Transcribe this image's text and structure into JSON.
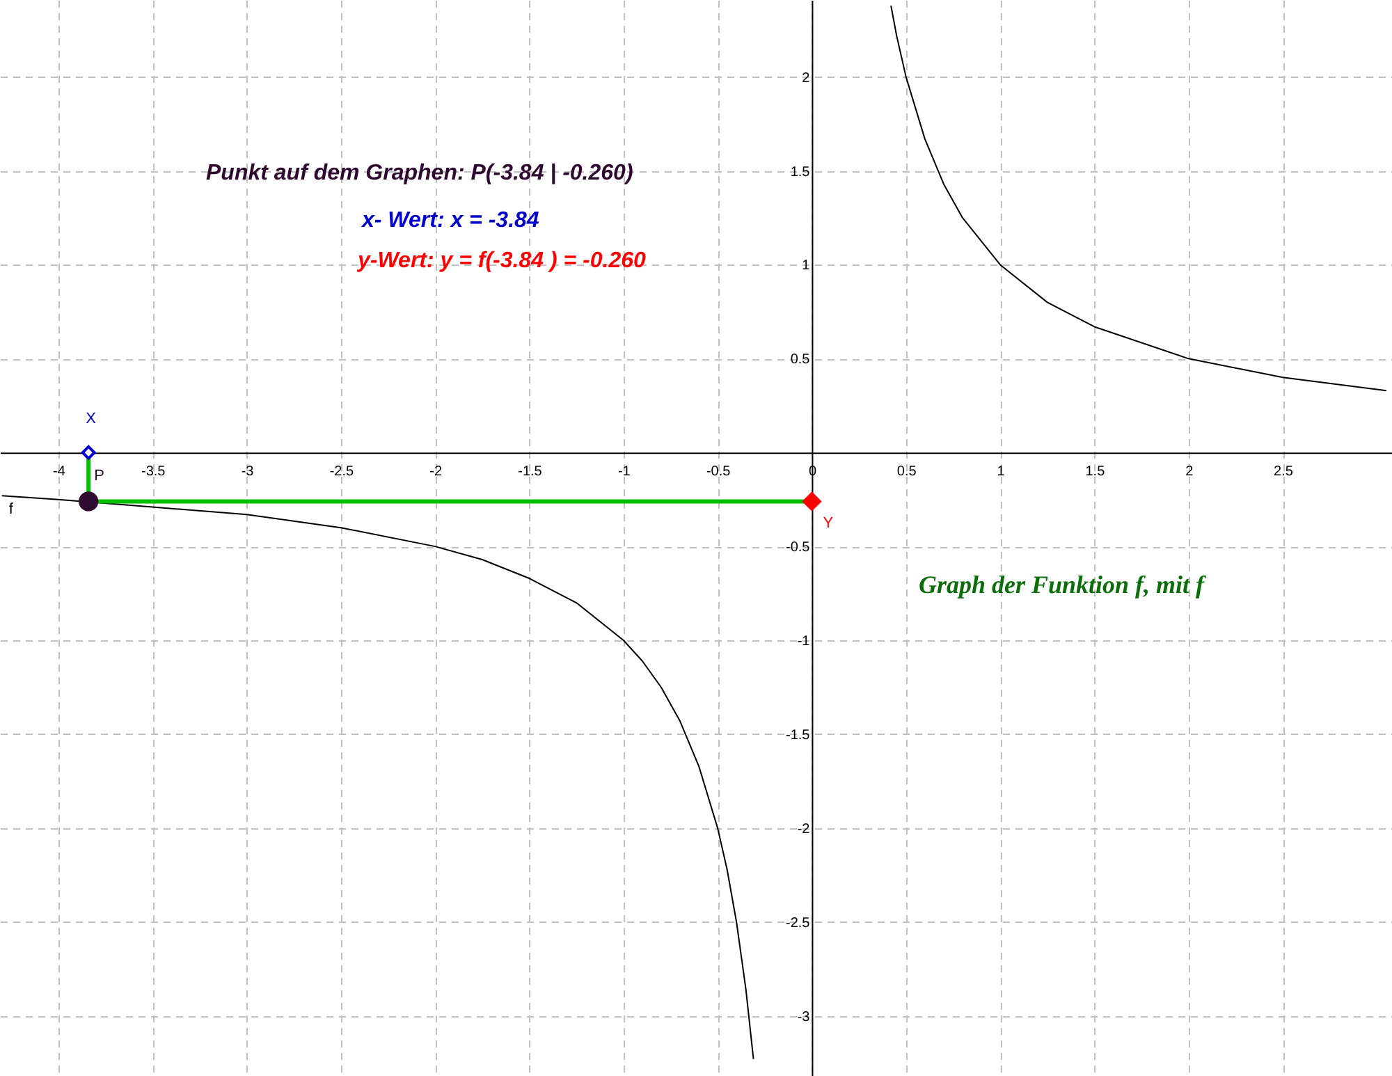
{
  "chart_data": {
    "type": "line",
    "xlim": [
      -4.31,
      3.08
    ],
    "ylim": [
      -3.32,
      2.41
    ],
    "xticks": [
      -4,
      -3.5,
      -3,
      -2.5,
      -2,
      -1.5,
      -1,
      -0.5,
      0,
      0.5,
      1,
      1.5,
      2,
      2.5
    ],
    "yticks": [
      -3,
      -2.5,
      -2,
      -1.5,
      -1,
      -0.5,
      0.5,
      1,
      1.5,
      2
    ],
    "grid": true,
    "line_style": "solid",
    "annotations": [
      "Punkt auf dem Graphen:   P(-3.84 | -0.260)",
      "x- Wert:    x = -3.84",
      "y-Wert:  y = f(-3.84 ) = -0.260",
      "Graph der Funktion f, mit  f"
    ],
    "series": [
      {
        "name": "f",
        "color": "#000000",
        "marker": "none",
        "x": [
          -4.3,
          -4,
          -3.5,
          -3,
          -2.5,
          -2,
          -1.75,
          -1.5,
          -1.25,
          -1,
          -0.9,
          -0.8,
          -0.7,
          -0.6,
          -0.5,
          -0.45,
          -0.4,
          -0.35,
          -0.31,
          0,
          0.42,
          0.45,
          0.5,
          0.6,
          0.7,
          0.8,
          1,
          1.25,
          1.5,
          2,
          2.5,
          3.05
        ],
        "values": [
          -0.23,
          -0.25,
          -0.29,
          -0.33,
          -0.4,
          -0.5,
          -0.57,
          -0.67,
          -0.8,
          -1,
          -1.11,
          -1.25,
          -1.43,
          -1.67,
          -2,
          -2.22,
          -2.5,
          -2.86,
          -3.23,
          null,
          2.38,
          2.22,
          2,
          1.67,
          1.43,
          1.25,
          1,
          0.8,
          0.67,
          0.5,
          0.4,
          0.33
        ]
      },
      {
        "type": "line",
        "color": "#00c000",
        "marker": "none",
        "x": [
          -3.84,
          -3.84
        ],
        "values": [
          0,
          -0.26
        ]
      },
      {
        "type": "line",
        "color": "#00c000",
        "marker": "none",
        "x": [
          -3.84,
          0
        ],
        "values": [
          -0.26,
          -0.26
        ]
      },
      {
        "name": "X",
        "type": "scatter",
        "color": "#0000cc",
        "marker": "diamond",
        "x": [
          -3.84
        ],
        "values": [
          0
        ]
      },
      {
        "name": "P",
        "type": "scatter",
        "color": "#2e0a30",
        "marker": "circle",
        "x": [
          -3.84
        ],
        "values": [
          -0.26
        ]
      },
      {
        "name": "Y",
        "type": "scatter",
        "color": "#ff0000",
        "marker": "diamond",
        "x": [
          0
        ],
        "values": [
          -0.26
        ]
      }
    ]
  }
}
